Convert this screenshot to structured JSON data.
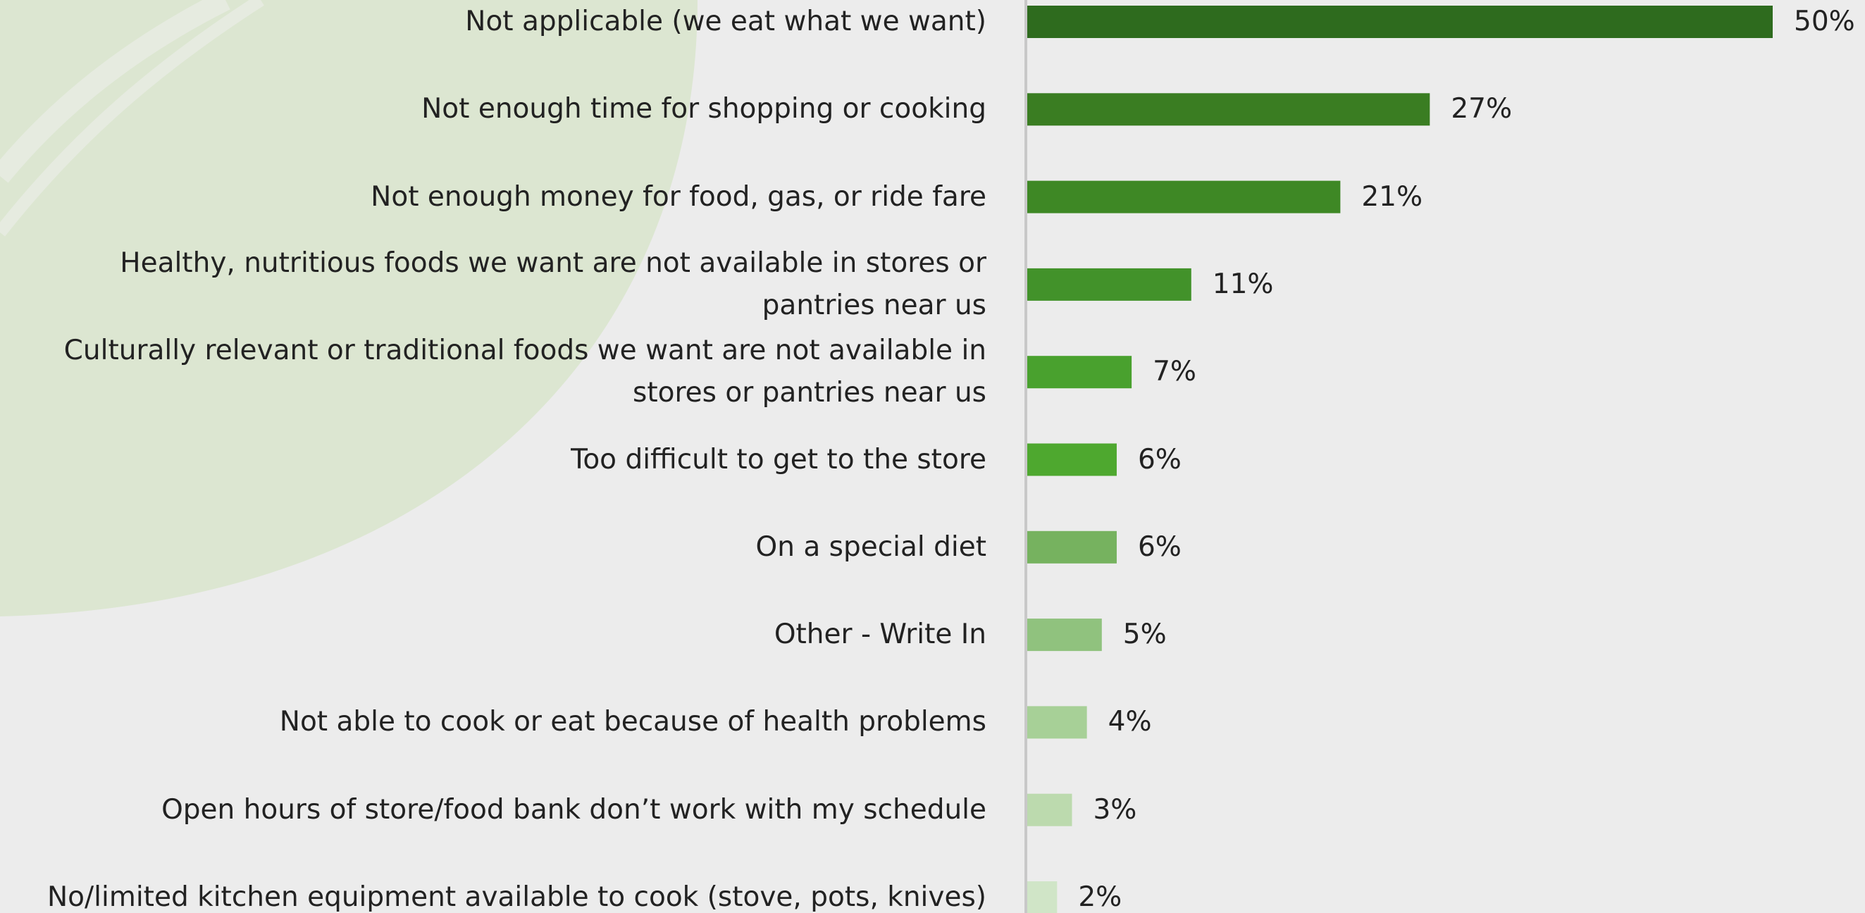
{
  "chart_data": {
    "type": "bar",
    "orientation": "horizontal",
    "categories": [
      "Not applicable (we eat what we want)",
      "Not enough time for shopping or cooking",
      "Not enough money for food, gas, or ride fare",
      "Healthy, nutritious foods we want are not available in stores or pantries near us",
      "Culturally relevant or traditional foods we want are not available in stores or pantries near us",
      "Too difficult to get to the store",
      "On a special diet",
      "Other - Write In",
      "Not able to cook or eat because of health problems",
      "Open hours of store/food bank don’t work with my schedule",
      "No/limited kitchen equipment available to cook (stove, pots, knives)"
    ],
    "values": [
      50,
      27,
      21,
      11,
      7,
      6,
      6,
      5,
      4,
      3,
      2
    ],
    "value_labels": [
      "50%",
      "27%",
      "21%",
      "11%",
      "7%",
      "6%",
      "6%",
      "5%",
      "4%",
      "3%",
      "2%"
    ],
    "colors": [
      "#2e6b1e",
      "#3a7d22",
      "#3e8825",
      "#42922a",
      "#49a12e",
      "#4ea82f",
      "#76b25f",
      "#90c27e",
      "#a7d097",
      "#bcdaae",
      "#d0e5c7"
    ]
  }
}
